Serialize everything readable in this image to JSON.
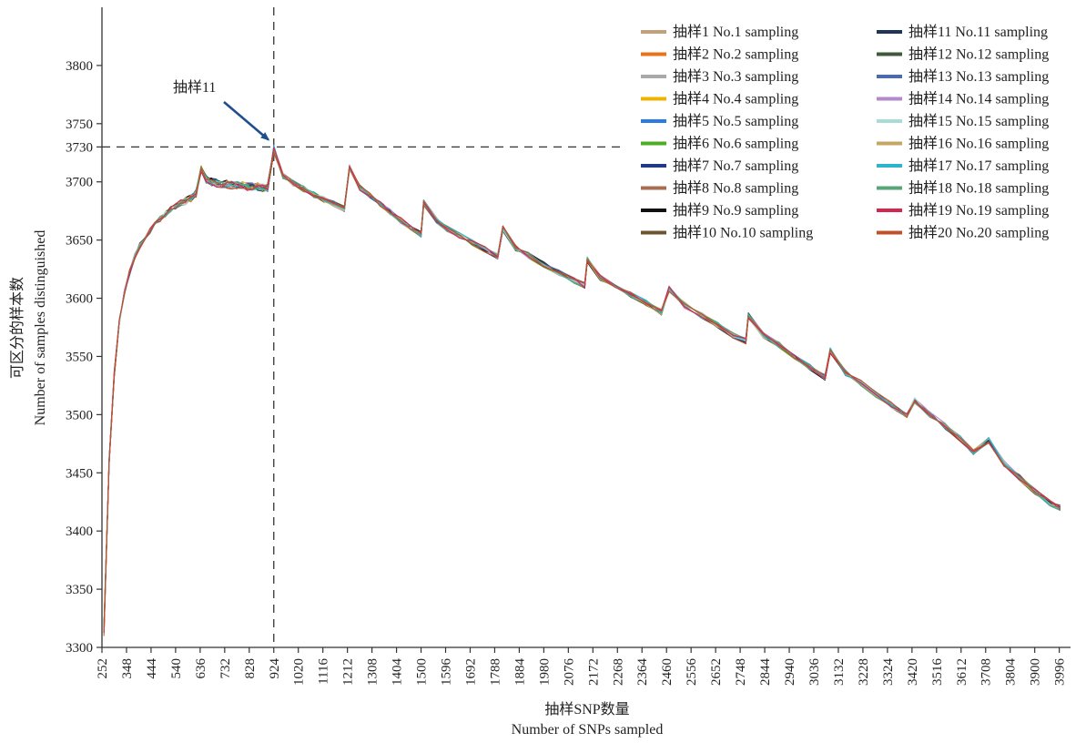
{
  "chart_data": {
    "type": "line",
    "title": "",
    "xlabel_cn": "抽样SNP数量",
    "xlabel": "Number of SNPs sampled",
    "ylabel_cn": "可区分的样本数",
    "ylabel": "Number of samples distinguished",
    "xlim": [
      252,
      4040
    ],
    "ylim": [
      3300,
      3850
    ],
    "x_ticks": [
      252,
      348,
      444,
      540,
      636,
      732,
      828,
      924,
      1020,
      1116,
      1212,
      1308,
      1404,
      1500,
      1596,
      1692,
      1788,
      1884,
      1980,
      2076,
      2172,
      2268,
      2364,
      2460,
      2556,
      2652,
      2748,
      2844,
      2940,
      3036,
      3132,
      3228,
      3324,
      3420,
      3516,
      3612,
      3708,
      3804,
      3900,
      3996
    ],
    "y_ticks": [
      3300,
      3350,
      3400,
      3450,
      3500,
      3550,
      3600,
      3650,
      3700,
      3730,
      3750,
      3800
    ],
    "grid": false,
    "legend_position": "top-right",
    "x": [
      260,
      280,
      300,
      320,
      340,
      360,
      380,
      400,
      420,
      440,
      460,
      480,
      500,
      520,
      540,
      560,
      580,
      600,
      620,
      640,
      660,
      680,
      700,
      720,
      740,
      760,
      780,
      800,
      820,
      840,
      860,
      880,
      900,
      924,
      960,
      1000,
      1040,
      1080,
      1120,
      1160,
      1200,
      1220,
      1260,
      1300,
      1340,
      1380,
      1420,
      1460,
      1500,
      1510,
      1560,
      1600,
      1650,
      1700,
      1750,
      1800,
      1820,
      1870,
      1920,
      1980,
      2040,
      2100,
      2140,
      2150,
      2200,
      2260,
      2320,
      2380,
      2440,
      2470,
      2530,
      2600,
      2660,
      2720,
      2770,
      2780,
      2840,
      2900,
      2960,
      3020,
      3080,
      3100,
      3160,
      3220,
      3280,
      3340,
      3400,
      3430,
      3490,
      3550,
      3610,
      3660,
      3720,
      3780,
      3840,
      3900,
      3960,
      4000
    ],
    "base_values": [
      3315,
      3460,
      3535,
      3580,
      3605,
      3622,
      3636,
      3645,
      3652,
      3658,
      3663,
      3668,
      3672,
      3676,
      3679,
      3682,
      3684,
      3686,
      3690,
      3712,
      3702,
      3700,
      3699,
      3698,
      3698,
      3697,
      3697,
      3697,
      3696,
      3696,
      3696,
      3695,
      3695,
      3728,
      3705,
      3699,
      3694,
      3689,
      3685,
      3681,
      3677,
      3712,
      3695,
      3688,
      3681,
      3674,
      3667,
      3661,
      3655,
      3682,
      3667,
      3660,
      3654,
      3648,
      3642,
      3636,
      3660,
      3643,
      3637,
      3629,
      3622,
      3615,
      3611,
      3633,
      3618,
      3611,
      3603,
      3596,
      3588,
      3608,
      3594,
      3585,
      3577,
      3568,
      3563,
      3585,
      3568,
      3560,
      3550,
      3541,
      3532,
      3555,
      3536,
      3527,
      3517,
      3508,
      3499,
      3512,
      3500,
      3490,
      3479,
      3468,
      3478,
      3458,
      3446,
      3434,
      3424,
      3420
    ],
    "series": [
      {
        "name": "抽样1 No.1 sampling",
        "color": "#c4a07a"
      },
      {
        "name": "抽样2 No.2 sampling",
        "color": "#e8731c"
      },
      {
        "name": "抽样3 No.3 sampling",
        "color": "#a9a9a9"
      },
      {
        "name": "抽样4 No.4 sampling",
        "color": "#f0b400"
      },
      {
        "name": "抽样5 No.5 sampling",
        "color": "#2b7be4"
      },
      {
        "name": "抽样6 No.6 sampling",
        "color": "#4cae23"
      },
      {
        "name": "抽样7 No.7 sampling",
        "color": "#22398a"
      },
      {
        "name": "抽样8 No.8 sampling",
        "color": "#a86e52"
      },
      {
        "name": "抽样9 No.9 sampling",
        "color": "#111111"
      },
      {
        "name": "抽样10 No.10 sampling",
        "color": "#6d5431"
      },
      {
        "name": "抽样11 No.11 sampling",
        "color": "#1e3555"
      },
      {
        "name": "抽样12 No.12 sampling",
        "color": "#3e5a3a"
      },
      {
        "name": "抽样13 No.13 sampling",
        "color": "#4c6aad"
      },
      {
        "name": "抽样14 No.14 sampling",
        "color": "#b58acd"
      },
      {
        "name": "抽样15 No.15 sampling",
        "color": "#a8dcd4"
      },
      {
        "name": "抽样16 No.16 sampling",
        "color": "#c7a562"
      },
      {
        "name": "抽样17 No.17 sampling",
        "color": "#2bb5cc"
      },
      {
        "name": "抽样18 No.18 sampling",
        "color": "#58a57a"
      },
      {
        "name": "抽样19 No.19 sampling",
        "color": "#d6264f"
      },
      {
        "name": "抽样20 No.20 sampling",
        "color": "#c0502a"
      }
    ],
    "annotation": {
      "label": "抽样11",
      "x": 924,
      "y": 3730
    }
  }
}
